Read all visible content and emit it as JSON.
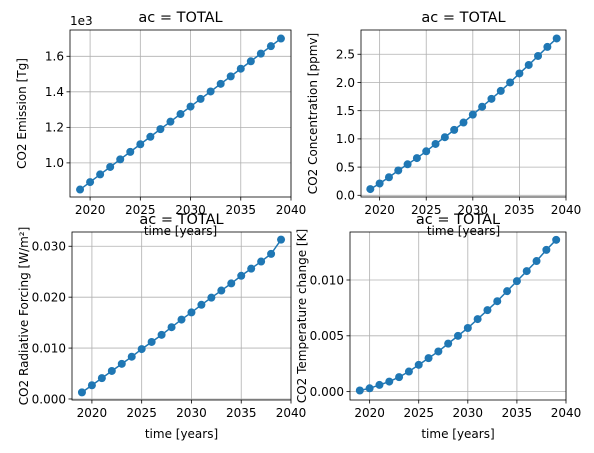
{
  "chart_data": [
    {
      "type": "line",
      "title": "ac = TOTAL",
      "xlabel": "time [years]",
      "ylabel": "CO2 Emission [Tg]",
      "offset_label": "1e3",
      "xlim": [
        2018.0,
        2040.0
      ],
      "ylim": [
        0.808,
        1.748
      ],
      "xticks": [
        2020,
        2025,
        2030,
        2035,
        2040
      ],
      "yticks": [
        1.0,
        1.2,
        1.4,
        1.6
      ],
      "ytick_labels": [
        "1.0",
        "1.2",
        "1.4",
        "1.6"
      ],
      "grid": true,
      "marker": "circle",
      "color": "#1f77b4",
      "x": [
        2019,
        2020,
        2021,
        2022,
        2023,
        2024,
        2025,
        2026,
        2027,
        2028,
        2029,
        2030,
        2031,
        2032,
        2033,
        2034,
        2035,
        2036,
        2037,
        2038,
        2039
      ],
      "y": [
        0.85,
        0.892,
        0.935,
        0.977,
        1.02,
        1.062,
        1.105,
        1.147,
        1.19,
        1.232,
        1.275,
        1.317,
        1.36,
        1.402,
        1.445,
        1.487,
        1.53,
        1.572,
        1.615,
        1.657,
        1.7
      ]
    },
    {
      "type": "line",
      "title": "ac = TOTAL",
      "xlabel": "time [years]",
      "ylabel": "CO2 Concentration [ppmv]",
      "xlim": [
        2018.0,
        2040.0
      ],
      "ylim": [
        -0.03,
        2.93
      ],
      "xticks": [
        2020,
        2025,
        2030,
        2035,
        2040
      ],
      "yticks": [
        0.0,
        0.5,
        1.0,
        1.5,
        2.0,
        2.5
      ],
      "ytick_labels": [
        "0.0",
        "0.5",
        "1.0",
        "1.5",
        "2.0",
        "2.5"
      ],
      "grid": true,
      "marker": "circle",
      "color": "#1f77b4",
      "x": [
        2019,
        2020,
        2021,
        2022,
        2023,
        2024,
        2025,
        2026,
        2027,
        2028,
        2029,
        2030,
        2031,
        2032,
        2033,
        2034,
        2035,
        2036,
        2037,
        2038,
        2039
      ],
      "y": [
        0.11,
        0.21,
        0.32,
        0.44,
        0.55,
        0.66,
        0.78,
        0.91,
        1.03,
        1.16,
        1.29,
        1.43,
        1.57,
        1.71,
        1.85,
        2.0,
        2.16,
        2.31,
        2.47,
        2.63,
        2.78
      ]
    },
    {
      "type": "line",
      "title": "ac = TOTAL",
      "xlabel": "time [years]",
      "ylabel": "CO2 Radiative Forcing [W/m²]",
      "xlim": [
        2018.0,
        2040.0
      ],
      "ylim": [
        -0.0002,
        0.0328
      ],
      "xticks": [
        2020,
        2025,
        2030,
        2035,
        2040
      ],
      "yticks": [
        0.0,
        0.01,
        0.02,
        0.03
      ],
      "ytick_labels": [
        "0.000",
        "0.010",
        "0.020",
        "0.030"
      ],
      "grid": true,
      "marker": "circle",
      "color": "#1f77b4",
      "x": [
        2019,
        2020,
        2021,
        2022,
        2023,
        2024,
        2025,
        2026,
        2027,
        2028,
        2029,
        2030,
        2031,
        2032,
        2033,
        2034,
        2035,
        2036,
        2037,
        2038,
        2039
      ],
      "y": [
        0.0013,
        0.0027,
        0.0041,
        0.0055,
        0.0069,
        0.0083,
        0.0098,
        0.0112,
        0.0126,
        0.0141,
        0.0156,
        0.017,
        0.0185,
        0.0199,
        0.0213,
        0.0227,
        0.0242,
        0.0256,
        0.027,
        0.0285,
        0.0313
      ]
    },
    {
      "type": "line",
      "title": "ac = TOTAL",
      "xlabel": "time [years]",
      "ylabel": "CO2 Temperature change [K]",
      "xlim": [
        2018.0,
        2040.0
      ],
      "ylim": [
        -0.00075,
        0.0143
      ],
      "xticks": [
        2020,
        2025,
        2030,
        2035,
        2040
      ],
      "yticks": [
        0.0,
        0.005,
        0.01
      ],
      "ytick_labels": [
        "0.000",
        "0.005",
        "0.010"
      ],
      "grid": true,
      "marker": "circle",
      "color": "#1f77b4",
      "x": [
        2019,
        2020,
        2021,
        2022,
        2023,
        2024,
        2025,
        2026,
        2027,
        2028,
        2029,
        2030,
        2031,
        2032,
        2033,
        2034,
        2035,
        2036,
        2037,
        2038,
        2039
      ],
      "y": [
        0.0001,
        0.0003,
        0.0006,
        0.0009,
        0.0013,
        0.0018,
        0.0024,
        0.003,
        0.0036,
        0.0043,
        0.005,
        0.0057,
        0.0065,
        0.0073,
        0.0081,
        0.009,
        0.0099,
        0.0108,
        0.0117,
        0.0127,
        0.0136
      ]
    }
  ]
}
